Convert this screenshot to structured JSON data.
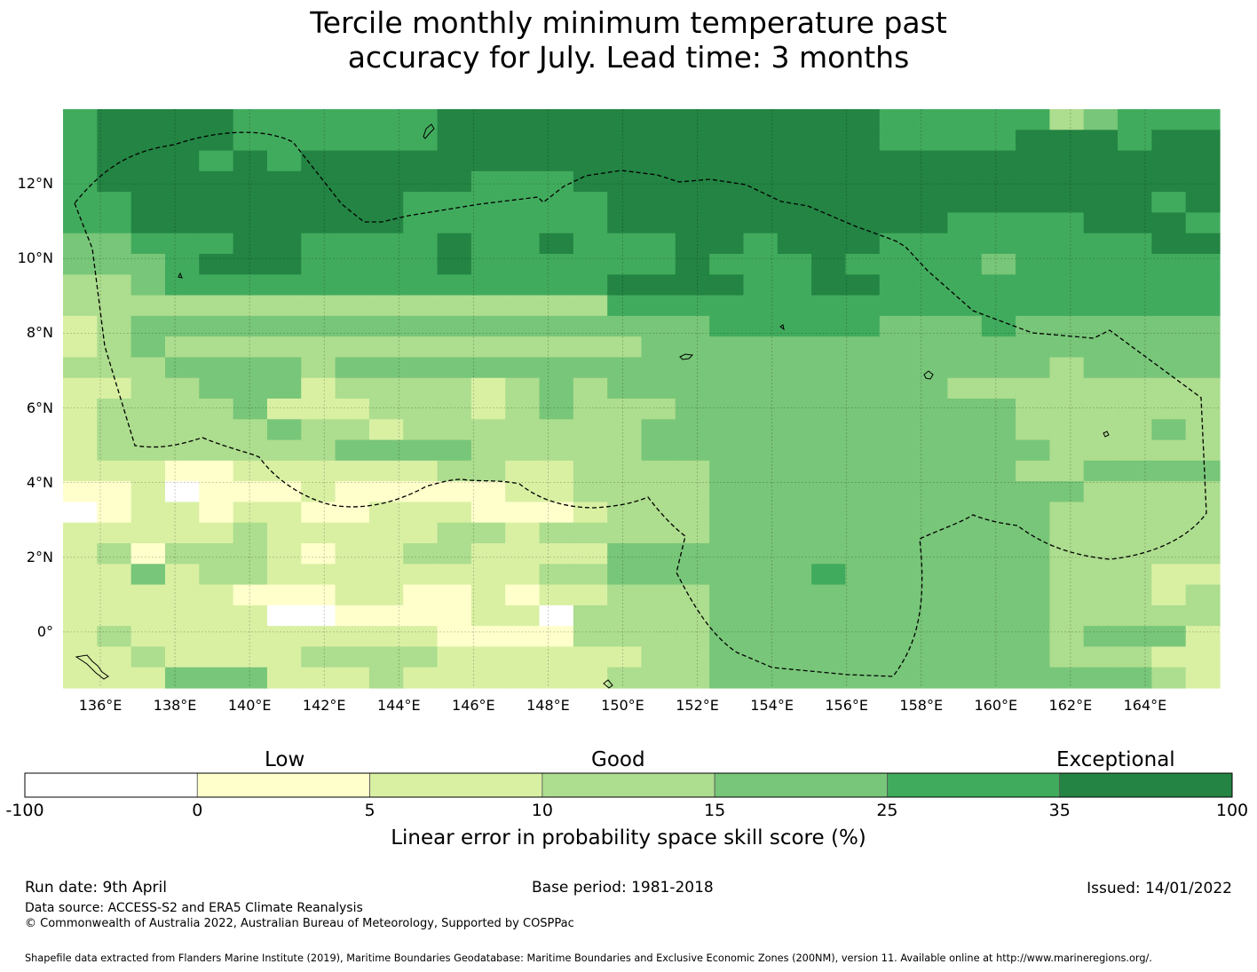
{
  "title": {
    "line1": "Tercile monthly minimum temperature past",
    "line2": "accuracy for July. Lead time: 3 months"
  },
  "map": {
    "lon_range": [
      135,
      166
    ],
    "lat_range": [
      -1.5,
      14
    ],
    "lat_ticks": [
      "12°N",
      "10°N",
      "8°N",
      "6°N",
      "4°N",
      "2°N",
      "0°"
    ],
    "lon_ticks": [
      "136°E",
      "138°E",
      "140°E",
      "142°E",
      "144°E",
      "146°E",
      "148°E",
      "150°E",
      "152°E",
      "154°E",
      "156°E",
      "158°E",
      "160°E",
      "162°E",
      "164°E"
    ],
    "grid_lines": true,
    "boundary_style": "dashed"
  },
  "colorbar": {
    "categories": {
      "low": "Low",
      "good": "Good",
      "exceptional": "Exceptional"
    },
    "ticks": [
      "-100",
      "0",
      "5",
      "10",
      "15",
      "25",
      "35",
      "100"
    ],
    "colors": [
      "#ffffff",
      "#ffffcc",
      "#d9f0a3",
      "#addd8e",
      "#78c679",
      "#41ab5d",
      "#238443"
    ],
    "label": "Linear error in probability space skill score (%)"
  },
  "footer": {
    "run_date": "Run date: 9th April",
    "base_period": "Base period: 1981-2018",
    "issued": "Issued: 14/01/2022",
    "data_source": "Data source: ACCESS-S2 and ERA5 Climate Reanalysis",
    "copyright": "© Commonwealth of Australia 2022, Australian Bureau of Meteorology, Supported by COSPPac",
    "shapefile": "Shapefile data extracted from Flanders Marine Institute (2019), Maritime Boundaries Geodatabase: Maritime Boundaries and Exclusive Economic Zones (200NM), version 11. Available online at http://www.marineregions.org/."
  }
}
